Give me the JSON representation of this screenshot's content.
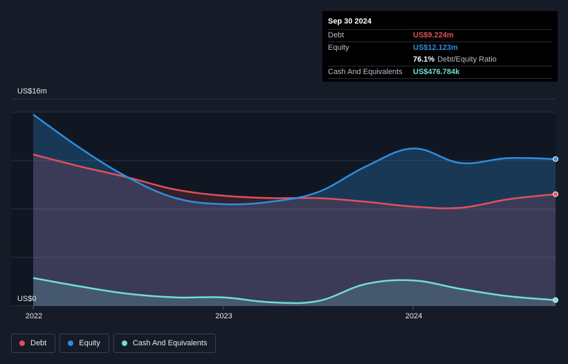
{
  "tooltip": {
    "date": "Sep 30 2024",
    "debt_label": "Debt",
    "debt_value": "US$9.224m",
    "equity_label": "Equity",
    "equity_value": "US$12.123m",
    "ratio_value": "76.1%",
    "ratio_label": "Debt/Equity Ratio",
    "cash_label": "Cash And Equivalents",
    "cash_value": "US$476.784k"
  },
  "legend": {
    "debt": "Debt",
    "equity": "Equity",
    "cash": "Cash And Equivalents"
  },
  "colors": {
    "debt": "#e0505e",
    "equity": "#2d8fe0",
    "cash": "#6fe0d0",
    "background": "#151b27"
  },
  "chart_data": {
    "type": "area",
    "y_unit": "US$ millions",
    "ylim": [
      0,
      16
    ],
    "y_tick_labels": [
      {
        "value": 16,
        "label": "US$16m"
      },
      {
        "value": 0,
        "label": "US$0"
      }
    ],
    "x_tick_labels": [
      "2022",
      "2023",
      "2024"
    ],
    "grid": true,
    "legend_position": "bottom-left",
    "x": [
      2022.0,
      2022.25,
      2022.5,
      2022.75,
      2023.0,
      2023.25,
      2023.5,
      2023.75,
      2024.0,
      2024.25,
      2024.5,
      2024.75
    ],
    "series": [
      {
        "name": "Debt",
        "color": "#e0505e",
        "values": [
          12.5,
          11.5,
          10.6,
          9.6,
          9.1,
          8.9,
          8.9,
          8.6,
          8.2,
          8.1,
          8.8,
          9.224
        ]
      },
      {
        "name": "Equity",
        "color": "#2d8fe0",
        "values": [
          15.8,
          13.0,
          10.6,
          8.9,
          8.4,
          8.6,
          9.4,
          11.5,
          13.0,
          11.8,
          12.2,
          12.123
        ]
      },
      {
        "name": "Cash And Equivalents",
        "color": "#6fe0d0",
        "values": [
          2.3,
          1.6,
          1.0,
          0.7,
          0.7,
          0.3,
          0.4,
          1.8,
          2.1,
          1.4,
          0.8,
          0.477
        ]
      }
    ]
  }
}
